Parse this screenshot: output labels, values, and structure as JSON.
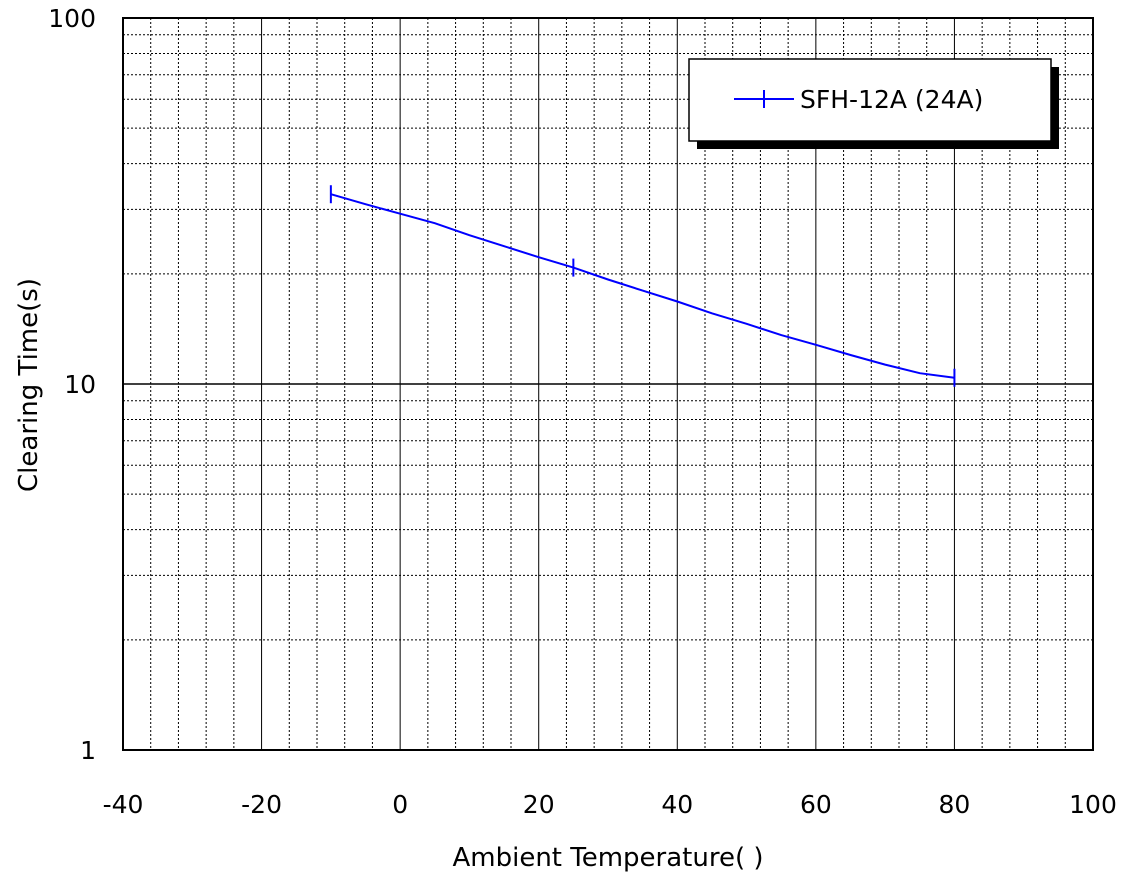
{
  "chart_data": {
    "type": "line",
    "xlabel": "Ambient Temperature(   )",
    "ylabel": "Clearing Time(s)",
    "xlim": [
      -40,
      100
    ],
    "ylim": [
      1,
      100
    ],
    "yscale": "log",
    "x_ticks": [
      -40,
      -20,
      0,
      20,
      40,
      60,
      80,
      100
    ],
    "x_tick_labels": [
      "-40",
      "-20",
      "0",
      "20",
      "40",
      "60",
      "80",
      "100"
    ],
    "y_ticks": [
      1,
      10,
      100
    ],
    "y_tick_labels": [
      "1",
      "10",
      "100"
    ],
    "x_minor_step": 4,
    "grid": true,
    "legend_position": "top-right",
    "series": [
      {
        "name": "SFH-12A (24A)",
        "color": "#0000ff",
        "marker": "vertical-tick",
        "x": [
          -10,
          -5,
          0,
          5,
          10,
          15,
          20,
          25,
          30,
          35,
          40,
          45,
          50,
          55,
          60,
          65,
          70,
          75,
          80
        ],
        "y": [
          33,
          31,
          29.2,
          27.5,
          25.5,
          23.8,
          22.2,
          20.8,
          19.3,
          18,
          16.8,
          15.6,
          14.6,
          13.6,
          12.8,
          12,
          11.3,
          10.7,
          10.4
        ],
        "marker_x": [
          -10,
          25,
          80
        ]
      }
    ]
  }
}
